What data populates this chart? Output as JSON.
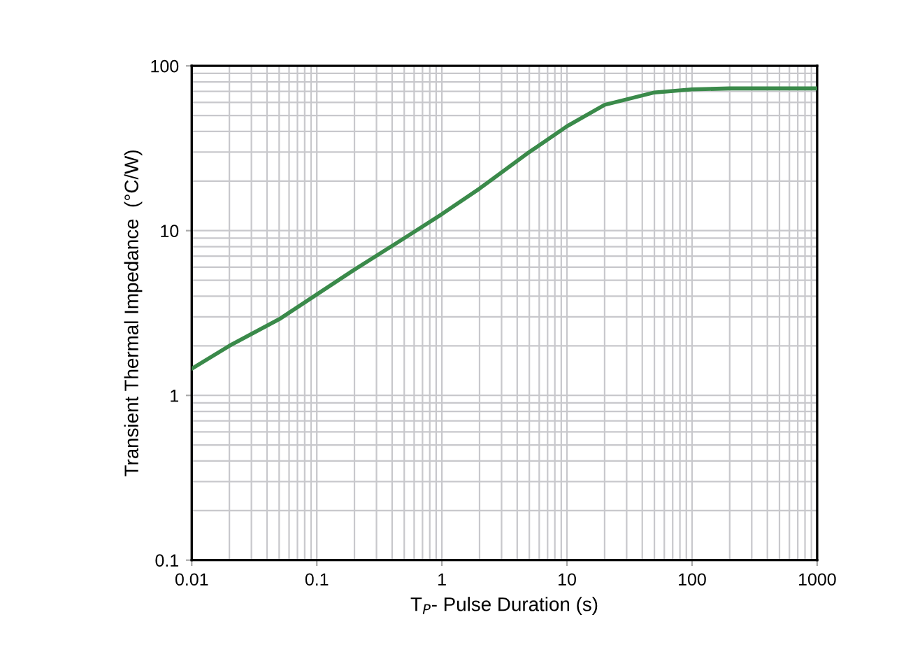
{
  "chart_data": {
    "type": "line",
    "xlabel": "T$_{P}$- Pulse Duration (s)",
    "ylabel": "Transient Thermal Impedance  (°C/W)",
    "log": "xy",
    "xlim": [
      0.01,
      1000
    ],
    "ylim": [
      0.1,
      100
    ],
    "xticks": [
      0.01,
      0.1,
      1,
      10,
      100,
      1000
    ],
    "yticks": [
      0.1,
      1,
      10,
      100
    ],
    "grid": true,
    "marker": "none",
    "line_style": "solid",
    "x": [
      0.01,
      0.02,
      0.05,
      0.1,
      0.2,
      0.5,
      1,
      2,
      5,
      10,
      20,
      50,
      100,
      200,
      500,
      1000
    ],
    "series": [
      {
        "color": "#3a8a4a",
        "values": [
          1.45,
          2.0,
          2.9,
          4.1,
          5.8,
          9.0,
          12.6,
          18,
          30,
          43,
          58,
          69,
          72,
          73,
          73,
          73
        ]
      }
    ]
  }
}
